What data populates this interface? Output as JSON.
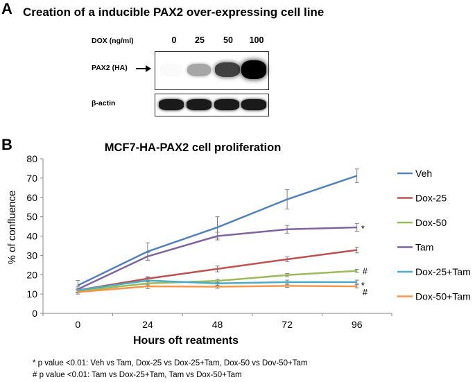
{
  "panel_a": {
    "letter": "A",
    "title": "Creation of a inducible PAX2 over-expressing cell line",
    "dox_label": "DOX (ng/ml)",
    "doses": [
      "0",
      "25",
      "50",
      "100"
    ],
    "pax2_label": "PAX2 (HA)",
    "pax2_intensity": [
      0.02,
      0.35,
      0.75,
      1.0
    ],
    "actin_label": "β-actin",
    "actin_intensity": [
      0.9,
      0.9,
      0.9,
      0.9
    ]
  },
  "panel_b": {
    "letter": "B"
  },
  "chart_data": {
    "type": "line",
    "title": "MCF7-HA-PAX2 cell proliferation",
    "xlabel": "Hours oft reatments",
    "ylabel": "% of confluence",
    "x": [
      0,
      24,
      48,
      72,
      96
    ],
    "xticks": [
      "0",
      "24",
      "48",
      "72",
      "96"
    ],
    "ylim": [
      0,
      80
    ],
    "yticks": [
      "0",
      "10",
      "20",
      "30",
      "40",
      "50",
      "60",
      "70",
      "80"
    ],
    "series": [
      {
        "name": "Veh",
        "color": "#4F81BD",
        "values": [
          14.5,
          32,
          44.5,
          59,
          71.2
        ],
        "errors": [
          2.5,
          4.5,
          5.5,
          5,
          3.5
        ]
      },
      {
        "name": "Dox-25",
        "color": "#C0504D",
        "values": [
          12,
          18,
          23,
          28,
          32.8
        ],
        "errors": [
          1,
          1,
          1.5,
          1.2,
          1.5
        ]
      },
      {
        "name": "Dox-50",
        "color": "#9BBB59",
        "values": [
          11.5,
          15.5,
          16.8,
          19.8,
          22
        ],
        "errors": [
          0.8,
          0.8,
          0.8,
          0.8,
          0.8
        ]
      },
      {
        "name": "Tam",
        "color": "#8064A2",
        "values": [
          12.5,
          29.5,
          40,
          43.5,
          44.5
        ],
        "errors": [
          1.5,
          2,
          2,
          2,
          2
        ]
      },
      {
        "name": "Dox-25+Tam",
        "color": "#4BACC6",
        "values": [
          12,
          17,
          15.5,
          16.2,
          16.2
        ],
        "errors": [
          1,
          1.5,
          1,
          1,
          1
        ]
      },
      {
        "name": "Dox-50+Tam",
        "color": "#F79646",
        "values": [
          11,
          14,
          13.8,
          14.2,
          14
        ],
        "errors": [
          1,
          1.2,
          0.8,
          0.8,
          0.8
        ]
      }
    ],
    "annotations": [
      {
        "text": "*",
        "series": "Tam"
      },
      {
        "text": "#",
        "series": "Dox-50"
      },
      {
        "text": "*",
        "series": "Dox-25+Tam"
      },
      {
        "text": "#",
        "series": "Dox-50+Tam"
      }
    ]
  },
  "footnotes": {
    "line1": "* p value <0.01: Veh vs Tam, Dox-25 vs Dox-25+Tam, Dox-50 vs Dov-50+Tam",
    "line2": "# p value <0.01: Tam vs Dox-25+Tam, Tam vs Dox-50+Tam"
  }
}
